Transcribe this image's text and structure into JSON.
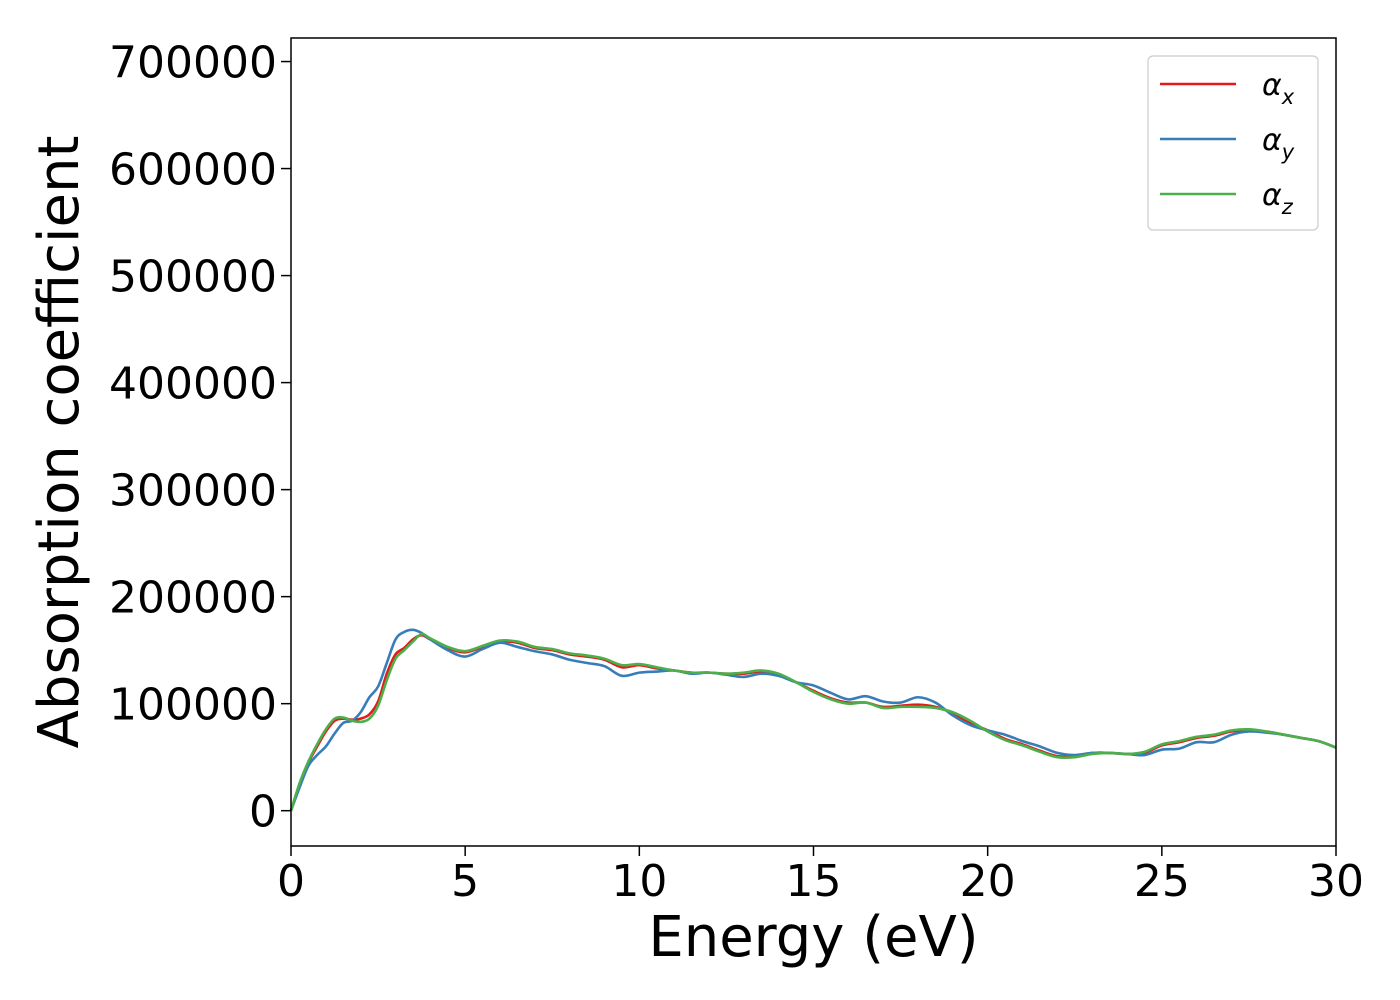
{
  "chart_data": {
    "type": "line",
    "title": "",
    "xlabel": "Energy (eV)",
    "ylabel": "Absorption coefficient",
    "xlim": [
      0,
      30
    ],
    "ylim": [
      -33000,
      722000
    ],
    "xticks": [
      0,
      5,
      10,
      15,
      20,
      25,
      30
    ],
    "yticks": [
      0,
      100000,
      200000,
      300000,
      400000,
      500000,
      600000,
      700000
    ],
    "grid": false,
    "legend_position": "top-right",
    "series": [
      {
        "name": "αx",
        "legend_main": "α",
        "legend_sub": "x",
        "color": "#e41a1c",
        "x": [
          0,
          0.25,
          0.5,
          0.75,
          1,
          1.25,
          1.5,
          1.75,
          2,
          2.25,
          2.5,
          2.75,
          3,
          3.25,
          3.5,
          3.75,
          4,
          4.5,
          5,
          5.5,
          6,
          6.5,
          7,
          7.5,
          8,
          8.5,
          9,
          9.5,
          10,
          10.5,
          11,
          11.5,
          12,
          12.5,
          13,
          13.5,
          14,
          14.5,
          15,
          15.5,
          16,
          16.5,
          17,
          17.5,
          18,
          18.5,
          19,
          19.5,
          20,
          20.5,
          21,
          21.5,
          22,
          22.5,
          23,
          23.5,
          24,
          24.5,
          25,
          25.5,
          26,
          26.5,
          27,
          27.5,
          28,
          28.5,
          29,
          29.5,
          30
        ],
        "values": [
          0,
          25000,
          45000,
          60000,
          74000,
          84000,
          86000,
          85000,
          86000,
          90000,
          102000,
          128000,
          146000,
          152000,
          160000,
          164000,
          160000,
          152000,
          148000,
          153000,
          158000,
          157000,
          152000,
          150000,
          146000,
          144000,
          141000,
          134000,
          136000,
          133000,
          131000,
          129000,
          129000,
          128000,
          128000,
          130000,
          127000,
          120000,
          112000,
          105000,
          101000,
          101000,
          97000,
          98000,
          99000,
          97000,
          91000,
          82000,
          75000,
          67000,
          62000,
          56000,
          51000,
          51000,
          54000,
          54000,
          53000,
          54000,
          61000,
          64000,
          68000,
          70000,
          74000,
          75000,
          74000,
          71000,
          68000,
          65000,
          59000
        ]
      },
      {
        "name": "αy",
        "legend_main": "α",
        "legend_sub": "y",
        "color": "#377eb8",
        "x": [
          0,
          0.25,
          0.5,
          0.75,
          1,
          1.25,
          1.5,
          1.75,
          2,
          2.25,
          2.5,
          2.75,
          3,
          3.25,
          3.5,
          3.75,
          4,
          4.5,
          5,
          5.5,
          6,
          6.5,
          7,
          7.5,
          8,
          8.5,
          9,
          9.5,
          10,
          10.5,
          11,
          11.5,
          12,
          12.5,
          13,
          13.5,
          14,
          14.5,
          15,
          15.5,
          16,
          16.5,
          17,
          17.5,
          18,
          18.5,
          19,
          19.5,
          20,
          20.5,
          21,
          21.5,
          22,
          22.5,
          23,
          23.5,
          24,
          24.5,
          25,
          25.5,
          26,
          26.5,
          27,
          27.5,
          28,
          28.5,
          29,
          29.5,
          30
        ],
        "values": [
          0,
          22000,
          42000,
          52000,
          60000,
          72000,
          82000,
          84000,
          92000,
          106000,
          116000,
          138000,
          160000,
          167000,
          169000,
          166000,
          160000,
          150000,
          144000,
          151000,
          157000,
          153000,
          149000,
          146000,
          141000,
          138000,
          135000,
          126000,
          129000,
          130000,
          131000,
          128000,
          129000,
          127000,
          125000,
          128000,
          126000,
          120000,
          117000,
          110000,
          104000,
          107000,
          102000,
          101000,
          106000,
          101000,
          89000,
          80000,
          75000,
          71000,
          65000,
          60000,
          54000,
          52000,
          54000,
          54000,
          53000,
          52000,
          57000,
          58000,
          64000,
          64000,
          71000,
          74000,
          73000,
          71000,
          68000,
          65000,
          59000
        ]
      },
      {
        "name": "αz",
        "legend_main": "α",
        "legend_sub": "z",
        "color": "#4daf4a",
        "x": [
          0,
          0.25,
          0.5,
          0.75,
          1,
          1.25,
          1.5,
          1.75,
          2,
          2.25,
          2.5,
          2.75,
          3,
          3.25,
          3.5,
          3.75,
          4,
          4.5,
          5,
          5.5,
          6,
          6.5,
          7,
          7.5,
          8,
          8.5,
          9,
          9.5,
          10,
          10.5,
          11,
          11.5,
          12,
          12.5,
          13,
          13.5,
          14,
          14.5,
          15,
          15.5,
          16,
          16.5,
          17,
          17.5,
          18,
          18.5,
          19,
          19.5,
          20,
          20.5,
          21,
          21.5,
          22,
          22.5,
          23,
          23.5,
          24,
          24.5,
          25,
          25.5,
          26,
          26.5,
          27,
          27.5,
          28,
          28.5,
          29,
          29.5,
          30
        ],
        "values": [
          0,
          26000,
          46000,
          62000,
          76000,
          86000,
          87000,
          84000,
          83000,
          86000,
          98000,
          122000,
          142000,
          150000,
          158000,
          165000,
          161000,
          153000,
          149000,
          154000,
          159000,
          158000,
          153000,
          151000,
          147000,
          145000,
          142000,
          136000,
          137000,
          134000,
          131000,
          129000,
          129000,
          128000,
          129000,
          131000,
          128000,
          120000,
          111000,
          104000,
          100000,
          101000,
          96000,
          97000,
          97000,
          96000,
          92000,
          84000,
          74000,
          66000,
          61000,
          55000,
          50000,
          50000,
          53000,
          54000,
          53000,
          55000,
          62000,
          65000,
          69000,
          71000,
          75000,
          76000,
          74000,
          71000,
          68000,
          65000,
          59000
        ]
      }
    ]
  }
}
